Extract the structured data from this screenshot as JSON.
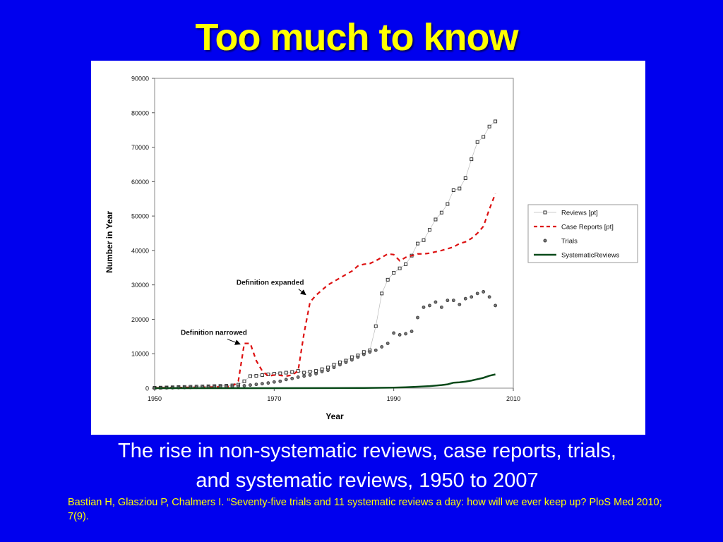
{
  "slide": {
    "title": "Too much to know",
    "caption_line1": "The rise in non-systematic reviews, case reports, trials,",
    "caption_line2": "and systematic reviews, 1950 to 2007",
    "citation": "Bastian H, Glasziou P, Chalmers I. “Seventy-five trials and 11 systematic reviews a day: how will we ever keep up? PloS Med 2010; 7(9)."
  },
  "chart_data": {
    "type": "line",
    "xlabel": "Year",
    "ylabel": "Number in Year",
    "xlim": [
      1950,
      2010
    ],
    "ylim": [
      0,
      90000
    ],
    "x_ticks": [
      "1950",
      "1970",
      "1990",
      "2010"
    ],
    "y_ticks": [
      "0",
      "10000",
      "20000",
      "30000",
      "40000",
      "50000",
      "60000",
      "70000",
      "80000",
      "90000"
    ],
    "legend_position": "right",
    "grid": false,
    "colors": {
      "reviews": "#333333",
      "case_reports": "#dd1111",
      "trials": "#333333",
      "systematic_reviews": "#0a4a1a"
    },
    "annotations": [
      {
        "text": "Definition expanded",
        "x": 1975.5,
        "y": 25500
      },
      {
        "text": "Definition narrowed",
        "x": 1965,
        "y": 13000
      }
    ],
    "series": [
      {
        "name": "Reviews [pt]",
        "style": "square-markers",
        "x": [
          1950,
          1951,
          1952,
          1953,
          1954,
          1955,
          1956,
          1957,
          1958,
          1959,
          1960,
          1961,
          1962,
          1963,
          1964,
          1965,
          1966,
          1967,
          1968,
          1969,
          1970,
          1971,
          1972,
          1973,
          1974,
          1975,
          1976,
          1977,
          1978,
          1979,
          1980,
          1981,
          1982,
          1983,
          1984,
          1985,
          1986,
          1987,
          1988,
          1989,
          1990,
          1991,
          1992,
          1993,
          1994,
          1995,
          1996,
          1997,
          1998,
          1999,
          2000,
          2001,
          2002,
          2003,
          2004,
          2005,
          2006,
          2007
        ],
        "y": [
          100,
          150,
          200,
          250,
          300,
          350,
          400,
          450,
          500,
          550,
          600,
          650,
          700,
          800,
          1000,
          2000,
          3500,
          3600,
          3800,
          4000,
          4200,
          4300,
          4500,
          4700,
          5000,
          4500,
          4800,
          5000,
          5500,
          6000,
          6800,
          7500,
          8000,
          9000,
          9500,
          10500,
          11000,
          18000,
          27500,
          31500,
          33500,
          34800,
          36000,
          38500,
          42000,
          43000,
          46000,
          49000,
          51000,
          53500,
          57500,
          58000,
          61000,
          66500,
          71500,
          73000,
          76000,
          77500
        ]
      },
      {
        "name": "Case Reports [pt]",
        "style": "dashed",
        "x": [
          1950,
          1955,
          1960,
          1963,
          1964,
          1965,
          1966,
          1967,
          1968,
          1969,
          1970,
          1971,
          1972,
          1973,
          1974,
          1975,
          1976,
          1977,
          1978,
          1979,
          1980,
          1981,
          1982,
          1983,
          1984,
          1985,
          1986,
          1987,
          1988,
          1989,
          1990,
          1991,
          1992,
          1993,
          1994,
          1995,
          1996,
          1997,
          1998,
          1999,
          2000,
          2001,
          2002,
          2003,
          2004,
          2005,
          2006,
          2007
        ],
        "y": [
          100,
          200,
          300,
          500,
          2000,
          13000,
          13000,
          8000,
          5000,
          3500,
          3800,
          3700,
          3500,
          3800,
          5000,
          16000,
          25000,
          27000,
          28500,
          30000,
          31000,
          32000,
          33000,
          34000,
          35500,
          36000,
          36200,
          37000,
          38000,
          39000,
          38800,
          37000,
          38000,
          38500,
          39000,
          39000,
          39200,
          39600,
          40000,
          40500,
          41000,
          42000,
          42500,
          43500,
          45000,
          47000,
          52000,
          56500
        ]
      },
      {
        "name": "Trials",
        "style": "circle-markers",
        "x": [
          1950,
          1951,
          1952,
          1953,
          1954,
          1955,
          1956,
          1957,
          1958,
          1959,
          1960,
          1961,
          1962,
          1963,
          1964,
          1965,
          1966,
          1967,
          1968,
          1969,
          1970,
          1971,
          1972,
          1973,
          1974,
          1975,
          1976,
          1977,
          1978,
          1979,
          1980,
          1981,
          1982,
          1983,
          1984,
          1985,
          1986,
          1987,
          1988,
          1989,
          1990,
          1991,
          1992,
          1993,
          1994,
          1995,
          1996,
          1997,
          1998,
          1999,
          2000,
          2001,
          2002,
          2003,
          2004,
          2005,
          2006,
          2007
        ],
        "y": [
          50,
          80,
          100,
          120,
          150,
          180,
          200,
          250,
          300,
          350,
          400,
          450,
          500,
          550,
          600,
          700,
          900,
          1100,
          1300,
          1500,
          1800,
          2000,
          2500,
          2800,
          3200,
          3500,
          3800,
          4200,
          4800,
          5200,
          6000,
          6800,
          7500,
          8200,
          9000,
          9800,
          10500,
          11000,
          12000,
          13000,
          16000,
          15500,
          15800,
          16500,
          20500,
          23500,
          24000,
          25000,
          23500,
          25500,
          25500,
          24300,
          26000,
          26500,
          27500,
          28000,
          26500,
          24000
        ]
      },
      {
        "name": "SystematicReviews",
        "style": "solid",
        "x": [
          1950,
          1960,
          1970,
          1980,
          1985,
          1990,
          1992,
          1994,
          1996,
          1998,
          1999,
          2000,
          2001,
          2002,
          2003,
          2004,
          2005,
          2006,
          2007
        ],
        "y": [
          0,
          0,
          0,
          20,
          50,
          150,
          250,
          400,
          600,
          900,
          1100,
          1600,
          1700,
          1900,
          2200,
          2600,
          3000,
          3600,
          4000
        ]
      }
    ]
  }
}
